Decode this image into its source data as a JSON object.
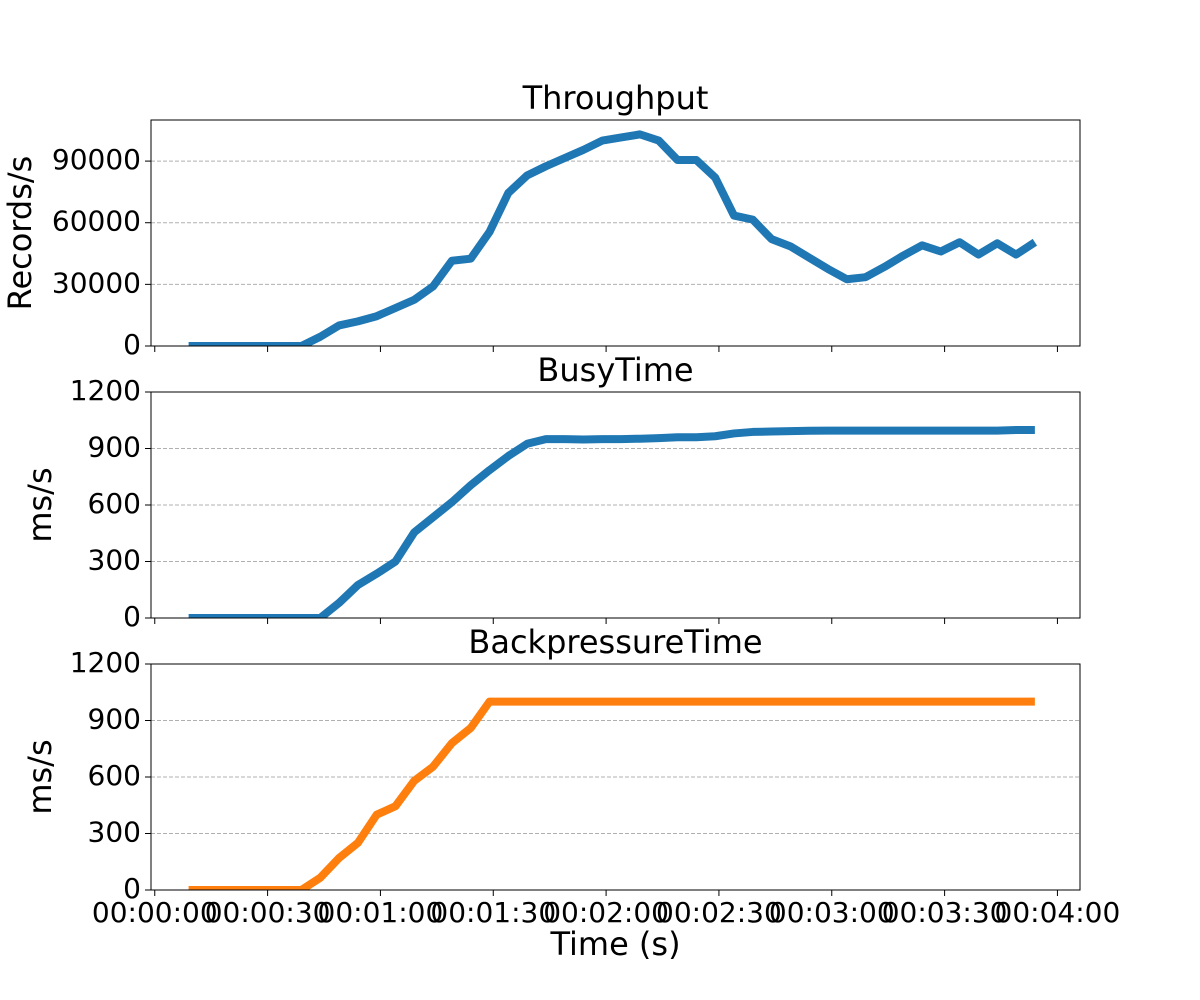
{
  "chart_data": [
    {
      "type": "line",
      "title": "Throughput",
      "ylabel": "Records/s",
      "color": "#1f77b4",
      "grid": true,
      "x": [
        9,
        14,
        19,
        24,
        29,
        34,
        39,
        44,
        49,
        54,
        59,
        64,
        69,
        74,
        79,
        84,
        89,
        94,
        99,
        104,
        109,
        114,
        119,
        124,
        129,
        134,
        139,
        144,
        149,
        154,
        159,
        164,
        169,
        174,
        179,
        184,
        189,
        194,
        199,
        204,
        209,
        214,
        219,
        224,
        229,
        234
      ],
      "values": [
        0,
        0,
        0,
        0,
        0,
        0,
        0,
        4500,
        10000,
        12000,
        14500,
        18500,
        22500,
        29000,
        41500,
        42500,
        55500,
        74500,
        83000,
        87500,
        91500,
        95500,
        100000,
        101500,
        103000,
        100000,
        90500,
        90500,
        82000,
        63500,
        61500,
        52000,
        48500,
        43000,
        37500,
        32500,
        33500,
        38500,
        44000,
        49000,
        46000,
        50500,
        44500,
        50000,
        44500,
        50500
      ],
      "xlim": [
        -1,
        246
      ],
      "xticks": [
        0,
        30,
        60,
        90,
        120,
        150,
        180,
        210,
        240
      ],
      "ylim": [
        0,
        110000
      ],
      "yticks": [
        0,
        30000,
        60000,
        90000
      ]
    },
    {
      "type": "line",
      "title": "BusyTime",
      "ylabel": "ms/s",
      "color": "#1f77b4",
      "grid": true,
      "x": [
        9,
        14,
        19,
        24,
        29,
        34,
        39,
        44,
        49,
        54,
        59,
        64,
        69,
        74,
        79,
        84,
        89,
        94,
        99,
        104,
        109,
        114,
        119,
        124,
        129,
        134,
        139,
        144,
        149,
        154,
        159,
        164,
        169,
        174,
        179,
        184,
        189,
        194,
        199,
        204,
        209,
        214,
        219,
        224,
        229,
        234
      ],
      "values": [
        0,
        0,
        0,
        0,
        0,
        0,
        0,
        0,
        80,
        175,
        235,
        300,
        455,
        535,
        615,
        705,
        785,
        860,
        925,
        950,
        950,
        948,
        950,
        950,
        952,
        955,
        960,
        960,
        965,
        980,
        988,
        990,
        992,
        994,
        995,
        995,
        995,
        995,
        995,
        995,
        995,
        995,
        995,
        995,
        998,
        998
      ],
      "xlim": [
        -1,
        246
      ],
      "xticks": [
        0,
        30,
        60,
        90,
        120,
        150,
        180,
        210,
        240
      ],
      "ylim": [
        0,
        1200
      ],
      "yticks": [
        0,
        300,
        600,
        900,
        1200
      ]
    },
    {
      "type": "line",
      "title": "BackpressureTime",
      "ylabel": "ms/s",
      "xlabel": "Time (s)",
      "color": "#ff7f0e",
      "grid": true,
      "x": [
        9,
        14,
        19,
        24,
        29,
        34,
        39,
        44,
        49,
        54,
        59,
        64,
        69,
        74,
        79,
        84,
        89,
        94,
        99,
        104,
        109,
        114,
        119,
        124,
        129,
        134,
        139,
        144,
        149,
        154,
        159,
        164,
        169,
        174,
        179,
        184,
        189,
        194,
        199,
        204,
        209,
        214,
        219,
        224,
        229,
        234
      ],
      "values": [
        0,
        0,
        0,
        0,
        0,
        0,
        0,
        65,
        170,
        250,
        400,
        445,
        580,
        655,
        780,
        860,
        1000,
        1000,
        1000,
        1000,
        1000,
        1000,
        1000,
        1000,
        1000,
        1000,
        1000,
        1000,
        1000,
        1000,
        1000,
        1000,
        1000,
        1000,
        1000,
        1000,
        1000,
        1000,
        1000,
        1000,
        1000,
        1000,
        1000,
        1000,
        1000,
        1000
      ],
      "xlim": [
        -1,
        246
      ],
      "xticks": [
        {
          "value": 0,
          "label": "00:00:00"
        },
        {
          "value": 30,
          "label": "00:00:30"
        },
        {
          "value": 60,
          "label": "00:01:00"
        },
        {
          "value": 90,
          "label": "00:01:30"
        },
        {
          "value": 120,
          "label": "00:02:00"
        },
        {
          "value": 150,
          "label": "00:02:30"
        },
        {
          "value": 180,
          "label": "00:03:00"
        },
        {
          "value": 210,
          "label": "00:03:30"
        },
        {
          "value": 240,
          "label": "00:04:00"
        }
      ],
      "ylim": [
        0,
        1200
      ],
      "yticks": [
        0,
        300,
        600,
        900,
        1200
      ]
    }
  ]
}
